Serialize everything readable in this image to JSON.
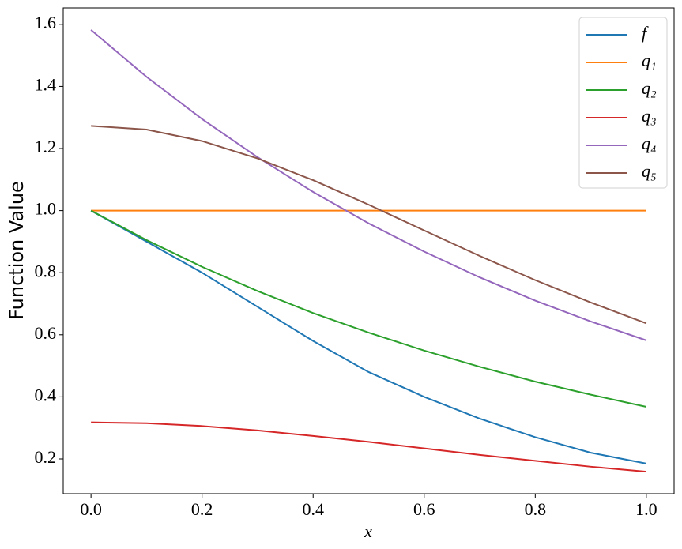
{
  "chart_data": {
    "type": "line",
    "xlabel": "x",
    "ylabel": "Function Value",
    "x": [
      0,
      0.1,
      0.2,
      0.3,
      0.4,
      0.5,
      0.6,
      0.7,
      0.8,
      0.9,
      1.0
    ],
    "series": [
      {
        "name": "f",
        "color": "#1f77b4",
        "values": [
          1.0,
          0.9,
          0.8,
          0.69,
          0.58,
          0.48,
          0.4,
          0.33,
          0.27,
          0.22,
          0.185
        ]
      },
      {
        "name": "q₁",
        "color": "#ff7f0e",
        "values": [
          1,
          1,
          1,
          1,
          1,
          1,
          1,
          1,
          1,
          1,
          1
        ]
      },
      {
        "name": "q₂",
        "color": "#2ca02c",
        "values": [
          1.0,
          0.905,
          0.819,
          0.741,
          0.67,
          0.607,
          0.549,
          0.497,
          0.449,
          0.407,
          0.368
        ]
      },
      {
        "name": "q₃",
        "color": "#d62728",
        "values": [
          0.318,
          0.315,
          0.306,
          0.292,
          0.274,
          0.255,
          0.234,
          0.213,
          0.194,
          0.175,
          0.159
        ]
      },
      {
        "name": "q₄",
        "color": "#9467bd",
        "values": [
          1.582,
          1.431,
          1.295,
          1.172,
          1.06,
          0.959,
          0.868,
          0.785,
          0.71,
          0.643,
          0.582
        ]
      },
      {
        "name": "q₅",
        "color": "#8c564b",
        "values": [
          1.273,
          1.261,
          1.224,
          1.168,
          1.098,
          1.019,
          0.936,
          0.854,
          0.776,
          0.704,
          0.637
        ]
      }
    ],
    "xlim": [
      -0.05,
      1.05
    ],
    "ylim": [
      0.088,
      1.653
    ],
    "xticks": [
      {
        "value": 0,
        "label": "0.0"
      },
      0.2,
      0.4,
      0.6,
      0.8,
      {
        "value": 1,
        "label": "1.0"
      }
    ],
    "yticks": [
      0.2,
      0.4,
      0.6,
      0.8,
      {
        "value": 1,
        "label": "1.0"
      },
      1.2,
      1.4,
      1.6
    ],
    "legend": "upper right"
  }
}
